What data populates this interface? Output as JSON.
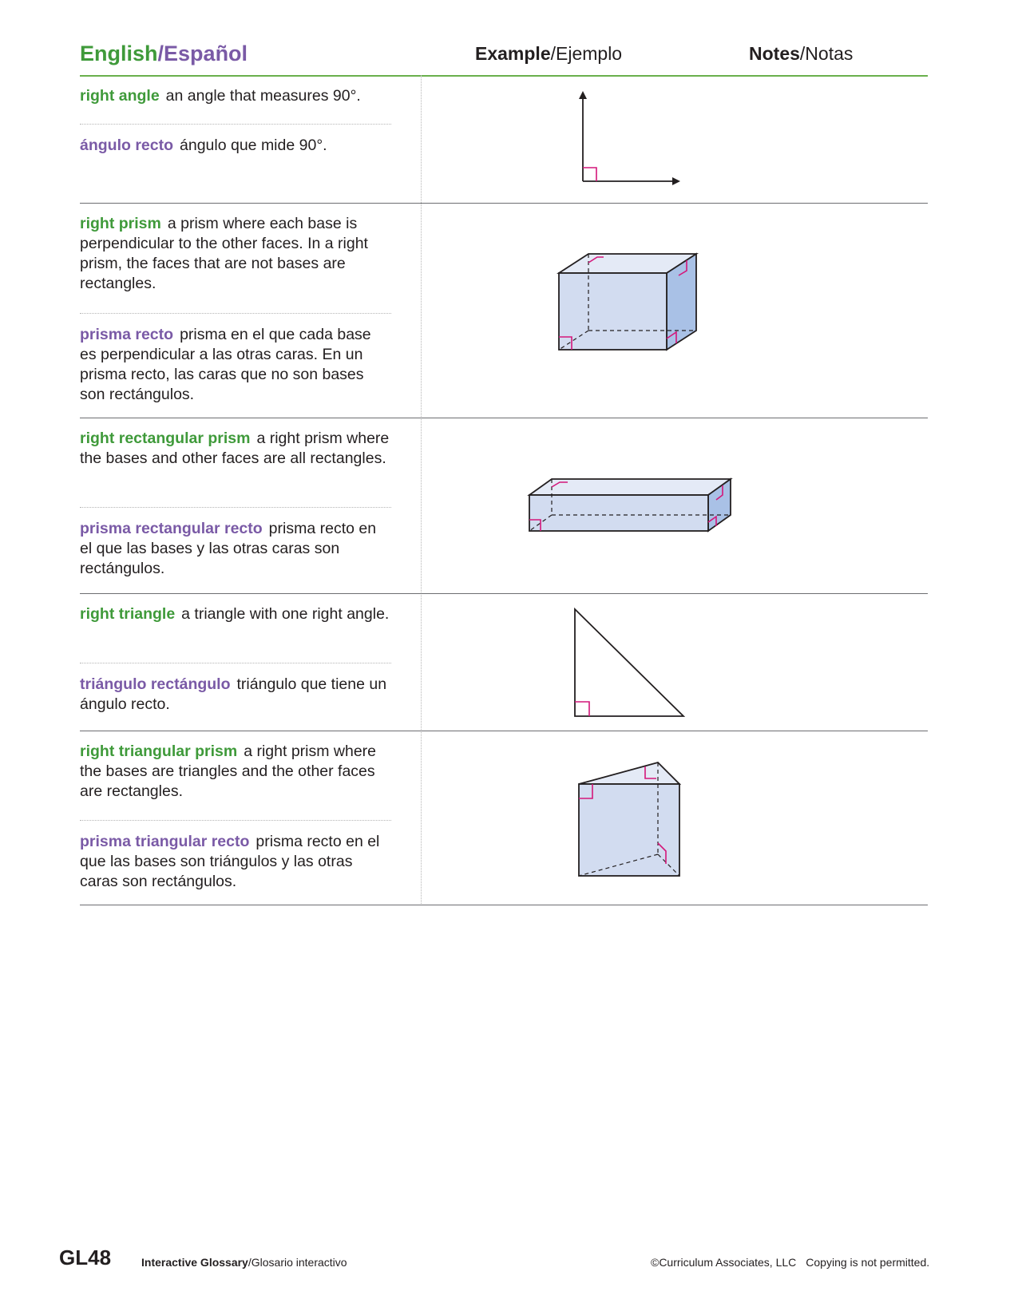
{
  "header": {
    "col1_en": "English",
    "col1_slash": "/",
    "col1_es": "Español",
    "col2_en": "Example",
    "col2_es": "/Ejemplo",
    "col3_en": "Notes",
    "col3_es": "/Notas"
  },
  "entries": [
    {
      "en_term": "right angle",
      "en_def": "an angle that measures 90°.",
      "es_term": "ángulo recto",
      "es_def": "ángulo que mide 90°."
    },
    {
      "en_term": "right prism",
      "en_def": "a prism where each base is perpendicular to the other faces. In a right prism, the faces that are not bases are rectangles.",
      "es_term": "prisma recto",
      "es_def": "prisma en el que cada base es perpendicular a las otras caras. En un prisma recto, las caras que no son bases son rectángulos."
    },
    {
      "en_term": "right rectangular prism",
      "en_def": "a right prism where the bases and other faces are all rectangles.",
      "es_term": "prisma rectangular recto",
      "es_def": "prisma recto en el que las bases y las otras caras son rectángulos."
    },
    {
      "en_term": "right triangle",
      "en_def": "a triangle with one right angle.",
      "es_term": "triángulo rectángulo",
      "es_def": "triángulo que tiene un ángulo recto."
    },
    {
      "en_term": "right triangular prism",
      "en_def": "a right prism where the bases are triangles and the other faces are rectangles.",
      "es_term": "prisma triangular recto",
      "es_def": "prisma recto en el que las bases son triángulos y las otras caras son rectángulos."
    }
  ],
  "footer": {
    "page_code": "GL48",
    "glossary_en": "Interactive Glossary",
    "glossary_es": "/Glosario interactivo",
    "copyright": "©Curriculum Associates, LLC",
    "notice": "Copying is not permitted."
  },
  "colors": {
    "english_green": "#3f9a3a",
    "spanish_purple": "#7a5aa6",
    "right_angle_mark": "#d4177a",
    "solid_fill": "#d2dcf0"
  }
}
